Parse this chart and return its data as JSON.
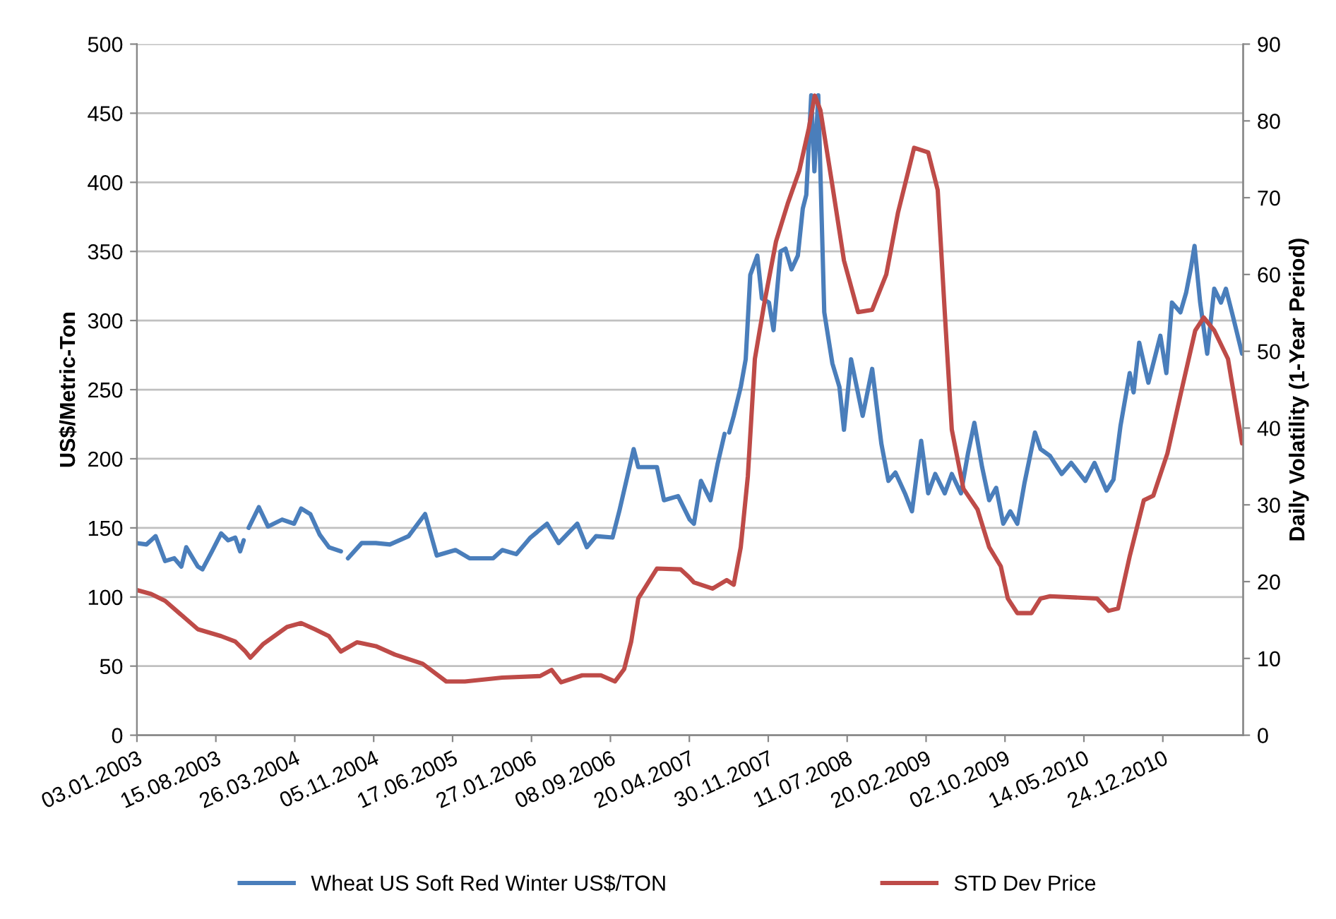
{
  "chart_data": {
    "type": "line",
    "ylabel": "US$/Metric-Ton",
    "y2label": "Daily Volatility (1-Year Period)",
    "xlim": [
      "2003-01-03",
      "2011-08-09"
    ],
    "xticks": [
      {
        "value": "2003-01-03",
        "label": "03.01.2003"
      },
      {
        "value": "2003-08-15",
        "label": "15.08.2003"
      },
      {
        "value": "2004-03-26",
        "label": "26.03.2004"
      },
      {
        "value": "2004-11-05",
        "label": "05.11.2004"
      },
      {
        "value": "2005-06-17",
        "label": "17.06.2005"
      },
      {
        "value": "2006-01-27",
        "label": "27.01.2006"
      },
      {
        "value": "2006-09-08",
        "label": "08.09.2006"
      },
      {
        "value": "2007-04-20",
        "label": "20.04.2007"
      },
      {
        "value": "2007-11-30",
        "label": "30.11.2007"
      },
      {
        "value": "2008-07-11",
        "label": "11.07.2008"
      },
      {
        "value": "2009-02-20",
        "label": "20.02.2009"
      },
      {
        "value": "2009-10-02",
        "label": "02.10.2009"
      },
      {
        "value": "2010-05-14",
        "label": "14.05.2010"
      },
      {
        "value": "2010-12-24",
        "label": "24.12.2010"
      }
    ],
    "ylim": [
      0,
      500
    ],
    "yticks": [
      0,
      50,
      100,
      150,
      200,
      250,
      300,
      350,
      400,
      450,
      500
    ],
    "y2lim": [
      0,
      90
    ],
    "y2ticks": [
      0,
      10,
      20,
      30,
      40,
      50,
      60,
      70,
      80,
      90
    ],
    "grid": "y",
    "legend": "bottom",
    "line_style": "solid",
    "series": [
      {
        "name": "Wheat US Soft Red Winter US$/TON",
        "color": "#4a7ebb",
        "x": [
          "2003-01-03",
          "2003-01-30",
          "2003-02-25",
          "2003-03-24",
          "2003-04-19",
          "2003-05-09",
          "2003-05-23",
          "2003-06-25",
          "2003-07-08",
          "2003-08-04",
          "2003-08-30",
          "2003-09-19",
          "2003-10-09",
          "2003-10-23",
          "2003-11-02",
          "2003-11-09",
          "2003-11-16",
          "2003-12-15",
          "2004-01-10",
          "2004-02-19",
          "2004-03-24",
          "2004-04-13",
          "2004-05-09",
          "2004-06-05",
          "2004-07-01",
          "2004-08-04",
          "2004-08-14",
          "2004-08-24",
          "2004-10-02",
          "2004-11-11",
          "2004-12-21",
          "2005-02-12",
          "2005-03-31",
          "2005-05-03",
          "2005-06-25",
          "2005-08-04",
          "2005-10-10",
          "2005-11-05",
          "2005-12-15",
          "2006-01-24",
          "2006-03-12",
          "2006-04-14",
          "2006-06-06",
          "2006-07-03",
          "2006-07-29",
          "2006-09-14",
          "2006-10-04",
          "2006-11-13",
          "2006-11-26",
          "2007-01-18",
          "2007-02-07",
          "2007-03-19",
          "2007-04-21",
          "2007-05-03",
          "2007-05-23",
          "2007-06-19",
          "2007-07-09",
          "2007-07-29",
          "2007-08-05",
          "2007-08-11",
          "2007-08-24",
          "2007-09-13",
          "2007-09-27",
          "2007-10-10",
          "2007-10-30",
          "2007-11-12",
          "2007-12-02",
          "2007-12-15",
          "2008-01-04",
          "2008-01-18",
          "2008-02-04",
          "2008-02-22",
          "2008-03-07",
          "2008-03-17",
          "2008-03-31",
          "2008-04-09",
          "2008-04-20",
          "2008-05-07",
          "2008-05-30",
          "2008-06-19",
          "2008-07-02",
          "2008-07-22",
          "2008-08-24",
          "2008-09-20",
          "2008-10-16",
          "2008-11-05",
          "2008-11-25",
          "2008-12-22",
          "2009-01-11",
          "2009-02-06",
          "2009-02-26",
          "2009-03-18",
          "2009-04-14",
          "2009-05-04",
          "2009-05-30",
          "2009-06-19",
          "2009-07-07",
          "2009-07-29",
          "2009-08-18",
          "2009-09-07",
          "2009-09-27",
          "2009-10-17",
          "2009-11-06",
          "2009-11-26",
          "2009-12-26",
          "2010-01-11",
          "2010-02-07",
          "2010-03-12",
          "2010-04-08",
          "2010-05-18",
          "2010-06-13",
          "2010-07-17",
          "2010-08-06",
          "2010-08-26",
          "2010-09-21",
          "2010-10-02",
          "2010-10-18",
          "2010-11-13",
          "2010-12-17",
          "2011-01-03",
          "2011-01-19",
          "2011-02-12",
          "2011-02-28",
          "2011-03-13",
          "2011-03-24",
          "2011-04-09",
          "2011-04-29",
          "2011-05-19",
          "2011-06-07",
          "2011-06-21",
          "2011-07-11",
          "2011-08-06"
        ],
        "values": [
          139,
          138,
          144,
          126,
          128,
          122,
          136,
          122,
          120,
          133,
          146,
          141,
          143,
          133,
          141,
          null,
          150,
          165,
          151,
          156,
          153,
          164,
          160,
          145,
          136,
          133,
          null,
          128,
          139,
          139,
          138,
          144,
          160,
          130,
          134,
          128,
          128,
          134,
          131,
          143,
          153,
          139,
          153,
          136,
          144,
          143,
          163,
          207,
          194,
          194,
          170,
          173,
          156,
          153,
          184,
          170,
          196,
          218,
          null,
          219,
          231,
          252,
          272,
          333,
          347,
          316,
          313,
          293,
          350,
          352,
          337,
          347,
          381,
          391,
          463,
          408,
          463,
          306,
          269,
          252,
          221,
          272,
          231,
          265,
          211,
          184,
          190,
          175,
          162,
          213,
          175,
          189,
          175,
          189,
          175,
          204,
          226,
          194,
          170,
          179,
          153,
          162,
          153,
          182,
          219,
          207,
          202,
          189,
          197,
          184,
          197,
          177,
          185,
          224,
          262,
          248,
          284,
          255,
          289,
          262,
          313,
          306,
          320,
          337,
          354,
          313,
          276,
          323,
          313,
          323,
          303,
          276
        ]
      },
      {
        "name": "STD Dev Price",
        "color": "#be4b48",
        "axis": "y2",
        "x": [
          "2003-01-03",
          "2003-02-12",
          "2003-03-24",
          "2003-05-03",
          "2003-06-25",
          "2003-08-30",
          "2003-10-09",
          "2003-11-05",
          "2003-11-21",
          "2003-12-28",
          "2004-03-04",
          "2004-04-13",
          "2004-05-22",
          "2004-07-01",
          "2004-08-04",
          "2004-09-19",
          "2004-11-11",
          "2005-01-04",
          "2005-03-24",
          "2005-05-30",
          "2005-07-22",
          "2005-11-05",
          "2006-02-20",
          "2006-03-25",
          "2006-04-21",
          "2006-06-20",
          "2006-08-12",
          "2006-09-21",
          "2006-10-17",
          "2006-11-06",
          "2006-11-26",
          "2007-01-18",
          "2007-03-26",
          "2007-04-21",
          "2007-05-03",
          "2007-06-25",
          "2007-08-04",
          "2007-08-24",
          "2007-09-13",
          "2007-10-03",
          "2007-10-23",
          "2007-11-19",
          "2007-12-22",
          "2008-01-24",
          "2008-02-26",
          "2008-03-24",
          "2008-04-10",
          "2008-04-26",
          "2008-05-30",
          "2008-07-02",
          "2008-08-11",
          "2008-09-20",
          "2008-10-30",
          "2008-12-02",
          "2009-01-17",
          "2009-02-26",
          "2009-03-25",
          "2009-04-14",
          "2009-05-04",
          "2009-06-06",
          "2009-07-16",
          "2009-08-18",
          "2009-09-20",
          "2009-10-10",
          "2009-11-06",
          "2009-12-16",
          "2010-01-11",
          "2010-02-07",
          "2010-06-20",
          "2010-07-23",
          "2010-08-19",
          "2010-09-21",
          "2010-10-31",
          "2010-11-27",
          "2011-01-06",
          "2011-02-14",
          "2011-03-26",
          "2011-04-19",
          "2011-05-19",
          "2011-06-27",
          "2011-08-06"
        ],
        "values": [
          18.9,
          18.4,
          17.5,
          15.9,
          13.8,
          12.9,
          12.2,
          11.0,
          10.1,
          11.9,
          14.1,
          14.6,
          13.8,
          12.9,
          10.9,
          12.1,
          11.6,
          10.5,
          9.3,
          7.0,
          7.0,
          7.5,
          7.7,
          8.5,
          6.9,
          7.8,
          7.8,
          7.0,
          8.6,
          12.2,
          17.8,
          21.7,
          21.6,
          20.5,
          19.9,
          19.1,
          20.2,
          19.6,
          24.5,
          33.7,
          49.0,
          56.3,
          64.3,
          69.2,
          73.5,
          79.0,
          83.3,
          81.4,
          71.6,
          61.8,
          55.1,
          55.4,
          60.0,
          68.0,
          76.5,
          75.9,
          71.0,
          55.1,
          39.8,
          32.1,
          29.4,
          24.5,
          22.0,
          17.8,
          15.9,
          15.9,
          17.8,
          18.1,
          17.8,
          16.2,
          16.5,
          23.3,
          30.6,
          31.2,
          36.7,
          44.7,
          52.7,
          54.4,
          52.7,
          49.0,
          38.0
        ]
      }
    ]
  }
}
